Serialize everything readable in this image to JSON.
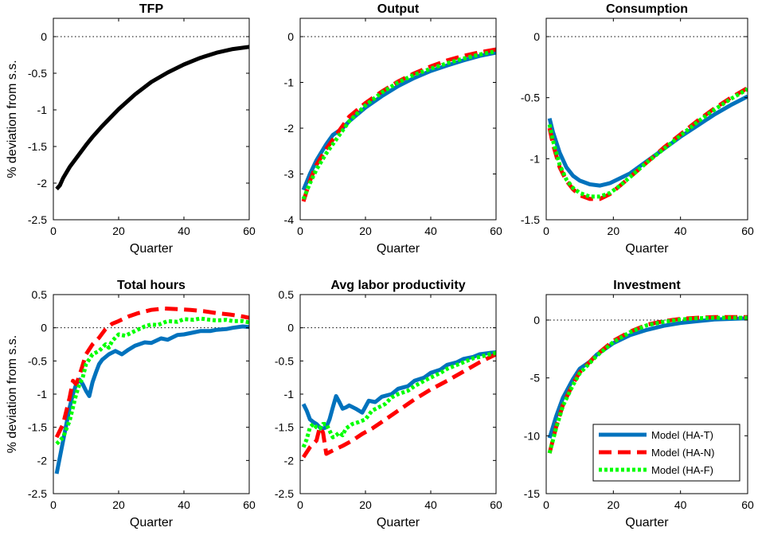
{
  "figure": {
    "ylabel_text": "% deviation from s.s.",
    "legend": [
      {
        "label": "Model (HA-T)",
        "color": "#0072BD",
        "style": "solid"
      },
      {
        "label": "Model (HA-N)",
        "color": "#FF0000",
        "style": "dashed"
      },
      {
        "label": "Model (HA-F)",
        "color": "#00FF00",
        "style": "dotted"
      }
    ]
  },
  "chart_data": [
    {
      "type": "line",
      "title": "TFP",
      "xlabel": "Quarter",
      "ylabel": "% deviation from s.s.",
      "xlim": [
        0,
        60
      ],
      "ylim": [
        -2.5,
        0.25
      ],
      "xticks": [
        0,
        20,
        40,
        60
      ],
      "yticks": [
        0,
        -0.5,
        -1,
        -1.5,
        -2,
        -2.5
      ],
      "reference_line": 0,
      "grid": false,
      "series": [
        {
          "name": "",
          "color": "#000000",
          "style": "solid",
          "x": [
            1,
            2,
            3,
            5,
            8,
            10,
            12,
            15,
            20,
            25,
            30,
            35,
            40,
            45,
            50,
            55,
            60
          ],
          "y": [
            -2.08,
            -2.03,
            -1.93,
            -1.78,
            -1.6,
            -1.48,
            -1.37,
            -1.22,
            -0.99,
            -0.79,
            -0.62,
            -0.49,
            -0.38,
            -0.29,
            -0.22,
            -0.17,
            -0.14
          ]
        }
      ]
    },
    {
      "type": "line",
      "title": "Output",
      "xlabel": "Quarter",
      "ylabel": "",
      "xlim": [
        0,
        60
      ],
      "ylim": [
        -4,
        0.4
      ],
      "xticks": [
        0,
        20,
        40,
        60
      ],
      "yticks": [
        0,
        -1,
        -2,
        -3,
        -4
      ],
      "reference_line": 0,
      "grid": false,
      "series": [
        {
          "name": "Model (HA-T)",
          "color": "#0072BD",
          "style": "solid",
          "x": [
            1,
            3,
            5,
            8,
            10,
            13,
            15,
            20,
            25,
            30,
            35,
            40,
            45,
            50,
            55,
            60
          ],
          "y": [
            -3.35,
            -3.0,
            -2.7,
            -2.35,
            -2.15,
            -2.0,
            -1.85,
            -1.55,
            -1.3,
            -1.08,
            -0.9,
            -0.75,
            -0.63,
            -0.52,
            -0.42,
            -0.35
          ]
        },
        {
          "name": "Model (HA-N)",
          "color": "#FF0000",
          "style": "dashed",
          "x": [
            1,
            3,
            5,
            8,
            10,
            13,
            15,
            20,
            25,
            30,
            35,
            40,
            45,
            50,
            55,
            60
          ],
          "y": [
            -3.6,
            -3.15,
            -2.8,
            -2.45,
            -2.25,
            -1.95,
            -1.75,
            -1.45,
            -1.2,
            -0.98,
            -0.8,
            -0.65,
            -0.52,
            -0.42,
            -0.34,
            -0.28
          ]
        },
        {
          "name": "Model (HA-F)",
          "color": "#00FF00",
          "style": "dotted",
          "x": [
            1,
            3,
            5,
            8,
            10,
            13,
            15,
            20,
            25,
            30,
            35,
            40,
            45,
            50,
            55,
            60
          ],
          "y": [
            -3.55,
            -3.2,
            -2.9,
            -2.55,
            -2.35,
            -2.05,
            -1.85,
            -1.5,
            -1.22,
            -1.0,
            -0.83,
            -0.7,
            -0.58,
            -0.48,
            -0.39,
            -0.32
          ]
        }
      ]
    },
    {
      "type": "line",
      "title": "Consumption",
      "xlabel": "Quarter",
      "ylabel": "",
      "xlim": [
        0,
        60
      ],
      "ylim": [
        -1.5,
        0.15
      ],
      "xticks": [
        0,
        20,
        40,
        60
      ],
      "yticks": [
        0,
        -0.5,
        -1,
        -1.5
      ],
      "reference_line": 0,
      "grid": false,
      "series": [
        {
          "name": "Model (HA-T)",
          "color": "#0072BD",
          "style": "solid",
          "x": [
            1,
            2,
            4,
            6,
            8,
            10,
            13,
            16,
            19,
            22,
            25,
            30,
            35,
            40,
            45,
            50,
            55,
            60
          ],
          "y": [
            -0.67,
            -0.78,
            -0.95,
            -1.07,
            -1.14,
            -1.18,
            -1.21,
            -1.22,
            -1.2,
            -1.16,
            -1.12,
            -1.02,
            -0.92,
            -0.82,
            -0.73,
            -0.64,
            -0.56,
            -0.49
          ]
        },
        {
          "name": "Model (HA-N)",
          "color": "#FF0000",
          "style": "dashed",
          "x": [
            1,
            2,
            4,
            6,
            8,
            10,
            13,
            16,
            19,
            22,
            25,
            30,
            35,
            40,
            45,
            50,
            55,
            60
          ],
          "y": [
            -0.75,
            -0.88,
            -1.07,
            -1.18,
            -1.25,
            -1.3,
            -1.33,
            -1.33,
            -1.29,
            -1.22,
            -1.15,
            -1.03,
            -0.91,
            -0.8,
            -0.69,
            -0.59,
            -0.5,
            -0.42
          ]
        },
        {
          "name": "Model (HA-F)",
          "color": "#00FF00",
          "style": "dotted",
          "x": [
            1,
            2,
            4,
            6,
            8,
            10,
            13,
            16,
            19,
            22,
            25,
            30,
            35,
            40,
            45,
            50,
            55,
            60
          ],
          "y": [
            -0.72,
            -0.85,
            -1.05,
            -1.17,
            -1.24,
            -1.28,
            -1.31,
            -1.31,
            -1.28,
            -1.22,
            -1.15,
            -1.03,
            -0.92,
            -0.81,
            -0.7,
            -0.6,
            -0.51,
            -0.43
          ]
        }
      ]
    },
    {
      "type": "line",
      "title": "Total hours",
      "xlabel": "Quarter",
      "ylabel": "% deviation from s.s.",
      "xlim": [
        0,
        60
      ],
      "ylim": [
        -2.5,
        0.5
      ],
      "xticks": [
        0,
        20,
        40,
        60
      ],
      "yticks": [
        0.5,
        0,
        -0.5,
        -1,
        -1.5,
        -2,
        -2.5
      ],
      "reference_line": 0,
      "grid": false,
      "series": [
        {
          "name": "Model (HA-T)",
          "color": "#0072BD",
          "style": "solid",
          "x": [
            1,
            2,
            3,
            4,
            5,
            6,
            7,
            8,
            9,
            10,
            11,
            12,
            13,
            14,
            15,
            17,
            19,
            21,
            23,
            25,
            28,
            30,
            33,
            35,
            38,
            40,
            43,
            45,
            48,
            50,
            53,
            55,
            58,
            60
          ],
          "y": [
            -2.2,
            -1.95,
            -1.7,
            -1.45,
            -1.2,
            -1.0,
            -0.85,
            -0.78,
            -0.85,
            -0.95,
            -1.03,
            -0.82,
            -0.68,
            -0.55,
            -0.48,
            -0.4,
            -0.35,
            -0.4,
            -0.33,
            -0.27,
            -0.22,
            -0.23,
            -0.16,
            -0.18,
            -0.11,
            -0.1,
            -0.07,
            -0.05,
            -0.05,
            -0.03,
            -0.02,
            0.0,
            0.02,
            0.01
          ]
        },
        {
          "name": "Model (HA-N)",
          "color": "#FF0000",
          "style": "dashed",
          "x": [
            1,
            3,
            5,
            6,
            7,
            8,
            10,
            12,
            14,
            16,
            18,
            20,
            23,
            26,
            30,
            34,
            38,
            42,
            46,
            50,
            54,
            58,
            60
          ],
          "y": [
            -1.65,
            -1.45,
            -1.05,
            -0.8,
            -0.85,
            -0.72,
            -0.4,
            -0.25,
            -0.15,
            -0.02,
            0.06,
            0.1,
            0.17,
            0.22,
            0.27,
            0.29,
            0.28,
            0.27,
            0.25,
            0.22,
            0.2,
            0.17,
            0.15
          ]
        },
        {
          "name": "Model (HA-F)",
          "color": "#00FF00",
          "style": "dotted",
          "x": [
            1,
            3,
            5,
            7,
            8,
            9,
            10,
            12,
            14,
            16,
            17,
            18,
            20,
            22,
            25,
            28,
            30,
            32,
            35,
            38,
            40,
            43,
            45,
            48,
            50,
            53,
            55,
            58,
            60
          ],
          "y": [
            -1.75,
            -1.65,
            -1.4,
            -1.0,
            -0.85,
            -0.75,
            -0.55,
            -0.4,
            -0.35,
            -0.25,
            -0.3,
            -0.2,
            -0.1,
            -0.12,
            -0.05,
            0.02,
            0.05,
            0.04,
            0.1,
            0.09,
            0.13,
            0.12,
            0.14,
            0.12,
            0.11,
            0.12,
            0.1,
            0.1,
            0.08
          ]
        }
      ]
    },
    {
      "type": "line",
      "title": "Avg labor productivity",
      "xlabel": "Quarter",
      "ylabel": "",
      "xlim": [
        0,
        60
      ],
      "ylim": [
        -2.5,
        0.5
      ],
      "xticks": [
        0,
        20,
        40,
        60
      ],
      "yticks": [
        0.5,
        0,
        -0.5,
        -1,
        -1.5,
        -2,
        -2.5
      ],
      "reference_line": 0,
      "grid": false,
      "series": [
        {
          "name": "Model (HA-T)",
          "color": "#0072BD",
          "style": "solid",
          "x": [
            1,
            2,
            3,
            4,
            5,
            6,
            7,
            8,
            9,
            10,
            11,
            12,
            13,
            14,
            15,
            17,
            19,
            21,
            23,
            25,
            28,
            30,
            33,
            35,
            38,
            40,
            43,
            45,
            48,
            50,
            53,
            55,
            58,
            60
          ],
          "y": [
            -1.15,
            -1.25,
            -1.38,
            -1.42,
            -1.45,
            -1.5,
            -1.52,
            -1.5,
            -1.38,
            -1.2,
            -1.03,
            -1.12,
            -1.22,
            -1.2,
            -1.17,
            -1.22,
            -1.28,
            -1.1,
            -1.12,
            -1.04,
            -1.0,
            -0.92,
            -0.88,
            -0.8,
            -0.75,
            -0.68,
            -0.63,
            -0.56,
            -0.52,
            -0.47,
            -0.44,
            -0.4,
            -0.38,
            -0.37
          ]
        },
        {
          "name": "Model (HA-N)",
          "color": "#FF0000",
          "style": "dashed",
          "x": [
            1,
            3,
            5,
            6,
            7,
            8,
            10,
            13,
            16,
            19,
            22,
            25,
            30,
            35,
            40,
            45,
            50,
            55,
            60
          ],
          "y": [
            -1.95,
            -1.8,
            -1.7,
            -1.5,
            -1.58,
            -1.9,
            -1.85,
            -1.78,
            -1.7,
            -1.6,
            -1.52,
            -1.42,
            -1.25,
            -1.08,
            -0.93,
            -0.8,
            -0.66,
            -0.52,
            -0.4
          ]
        },
        {
          "name": "Model (HA-F)",
          "color": "#00FF00",
          "style": "dotted",
          "x": [
            1,
            2,
            3,
            4,
            5,
            6,
            7,
            8,
            9,
            10,
            11,
            12,
            13,
            14,
            16,
            18,
            20,
            22,
            24,
            26,
            28,
            30,
            33,
            35,
            38,
            40,
            43,
            45,
            48,
            50,
            53,
            55,
            58,
            60
          ],
          "y": [
            -1.8,
            -1.68,
            -1.5,
            -1.45,
            -1.5,
            -1.52,
            -1.45,
            -1.45,
            -1.55,
            -1.65,
            -1.62,
            -1.58,
            -1.62,
            -1.52,
            -1.45,
            -1.42,
            -1.38,
            -1.25,
            -1.2,
            -1.15,
            -1.05,
            -1.0,
            -0.95,
            -0.88,
            -0.8,
            -0.75,
            -0.68,
            -0.62,
            -0.56,
            -0.52,
            -0.46,
            -0.44,
            -0.4,
            -0.38
          ]
        }
      ]
    },
    {
      "type": "line",
      "title": "Investment",
      "xlabel": "Quarter",
      "ylabel": "",
      "xlim": [
        0,
        60
      ],
      "ylim": [
        -15,
        2.2
      ],
      "xticks": [
        0,
        20,
        40,
        60
      ],
      "yticks": [
        0,
        -5,
        -10,
        -15
      ],
      "reference_line": 0,
      "grid": false,
      "legend_position": "bottom-right",
      "series": [
        {
          "name": "Model (HA-T)",
          "color": "#0072BD",
          "style": "solid",
          "x": [
            1,
            3,
            5,
            8,
            10,
            13,
            15,
            20,
            25,
            30,
            35,
            40,
            45,
            50,
            55,
            60
          ],
          "y": [
            -10.2,
            -8.3,
            -6.7,
            -5.1,
            -4.2,
            -3.6,
            -3.0,
            -2.0,
            -1.3,
            -0.85,
            -0.5,
            -0.25,
            -0.1,
            0.05,
            0.1,
            0.15
          ]
        },
        {
          "name": "Model (HA-N)",
          "color": "#FF0000",
          "style": "dashed",
          "x": [
            1,
            3,
            5,
            8,
            10,
            13,
            15,
            20,
            25,
            30,
            35,
            40,
            45,
            50,
            55,
            60
          ],
          "y": [
            -11.5,
            -9.2,
            -7.3,
            -5.5,
            -4.5,
            -3.6,
            -3.0,
            -1.8,
            -1.0,
            -0.4,
            -0.1,
            0.1,
            0.2,
            0.25,
            0.25,
            0.25
          ]
        },
        {
          "name": "Model (HA-F)",
          "color": "#00FF00",
          "style": "dotted",
          "x": [
            1,
            3,
            5,
            8,
            10,
            13,
            15,
            20,
            25,
            30,
            35,
            40,
            45,
            50,
            55,
            60
          ],
          "y": [
            -11.5,
            -9.3,
            -7.4,
            -5.6,
            -4.6,
            -3.7,
            -3.1,
            -1.9,
            -1.05,
            -0.45,
            -0.15,
            0.05,
            0.15,
            0.2,
            0.2,
            0.2
          ]
        }
      ]
    }
  ]
}
